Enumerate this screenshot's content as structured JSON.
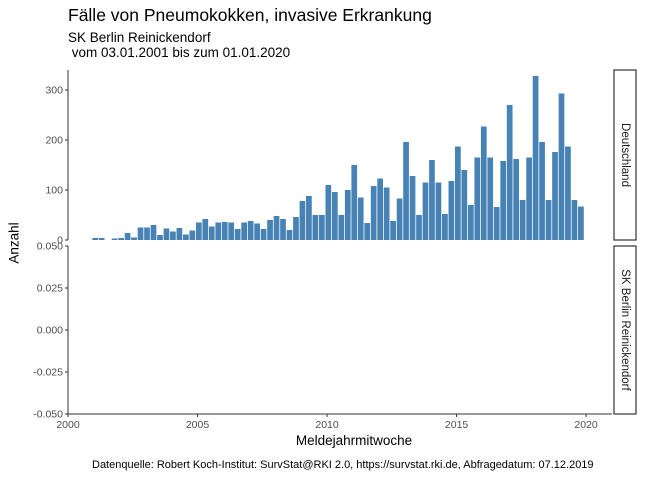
{
  "title": "Fälle von Pneumokokken, invasive Erkrankung",
  "subtitle_line1": "SK Berlin Reinickendorf",
  "subtitle_line2": " vom 03.01.2001 bis zum 01.01.2020",
  "caption": "Datenquelle: Robert Koch-Institut: SurvStat@RKI 2.0, https://survstat.rki.de, Abfragedatum: 07.12.2019",
  "colors": {
    "bar": "#4682b4",
    "axis": "#333333",
    "strip_border": "#333333"
  },
  "chart_data": {
    "type": "bar",
    "xlabel": "Meldejahrmitwoche",
    "ylabel": "Anzahl",
    "xlim": [
      2000,
      2021
    ],
    "x_ticks": [
      "2000",
      "2005",
      "2010",
      "2015",
      "2020"
    ],
    "grid": false,
    "facets": [
      {
        "strip": "Deutschland",
        "ylim": [
          0,
          340
        ],
        "y_ticks": [
          "0",
          "100",
          "200",
          "300"
        ],
        "bar_width": 0.22,
        "x": [
          2001.05,
          2001.3,
          2001.8,
          2002.05,
          2002.3,
          2002.55,
          2002.8,
          2003.05,
          2003.3,
          2003.55,
          2003.8,
          2004.05,
          2004.3,
          2004.55,
          2004.8,
          2005.05,
          2005.3,
          2005.55,
          2005.8,
          2006.05,
          2006.3,
          2006.55,
          2006.8,
          2007.05,
          2007.3,
          2007.55,
          2007.8,
          2008.05,
          2008.3,
          2008.55,
          2008.8,
          2009.05,
          2009.3,
          2009.55,
          2009.8,
          2010.05,
          2010.3,
          2010.55,
          2010.8,
          2011.05,
          2011.3,
          2011.55,
          2011.8,
          2012.05,
          2012.3,
          2012.55,
          2012.8,
          2013.05,
          2013.3,
          2013.55,
          2013.8,
          2014.05,
          2014.3,
          2014.55,
          2014.8,
          2015.05,
          2015.3,
          2015.55,
          2015.8,
          2016.05,
          2016.3,
          2016.55,
          2016.8,
          2017.05,
          2017.3,
          2017.55,
          2017.8,
          2018.05,
          2018.3,
          2018.55,
          2018.8,
          2019.05,
          2019.3,
          2019.55,
          2019.8
        ],
        "values": [
          4,
          4,
          3,
          4,
          14,
          5,
          25,
          25,
          30,
          10,
          23,
          17,
          24,
          11,
          19,
          35,
          42,
          27,
          35,
          36,
          35,
          22,
          35,
          38,
          33,
          22,
          40,
          48,
          42,
          20,
          46,
          78,
          88,
          50,
          50,
          110,
          96,
          50,
          100,
          150,
          85,
          34,
          108,
          123,
          105,
          38,
          83,
          196,
          128,
          50,
          115,
          160,
          115,
          52,
          118,
          187,
          140,
          70,
          165,
          227,
          165,
          66,
          158,
          270,
          162,
          80,
          165,
          328,
          196,
          80,
          176,
          293,
          187,
          80,
          67
        ]
      },
      {
        "strip": "SK Berlin Reinickendorf",
        "ylim": [
          -0.05,
          0.05
        ],
        "y_ticks": [
          "-0.050",
          "-0.025",
          "0.000",
          "0.025",
          "0.050"
        ],
        "y_tick_values": [
          -0.05,
          -0.025,
          0,
          0.025,
          0.05
        ],
        "x": [],
        "values": []
      }
    ]
  }
}
